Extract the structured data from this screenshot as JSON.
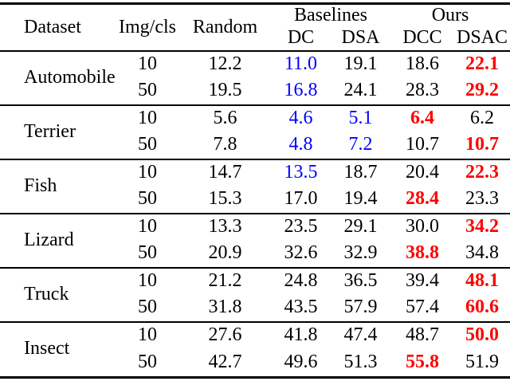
{
  "table": {
    "header": {
      "dataset": "Dataset",
      "img_per_cls": "Img/cls",
      "random": "Random",
      "baselines_group": "Baselines",
      "ours_group": "Ours",
      "dc": "DC",
      "dsa": "DSA",
      "dcc": "DCC",
      "dsac": "DSAC"
    },
    "colors": {
      "text": "#000000",
      "baseline_best_blue": "#0000ff",
      "best_result_red": "#ff0000",
      "rules": "#000000",
      "background": "#ffffff"
    },
    "column_keys": [
      "random",
      "dc",
      "dsa",
      "dcc",
      "dsac"
    ],
    "groups": [
      {
        "dataset": "Automobile",
        "rows": [
          {
            "img_per_cls": "10",
            "cells": [
              {
                "t": "12.2",
                "c": "black"
              },
              {
                "t": "11.0",
                "c": "blue"
              },
              {
                "t": "19.1",
                "c": "black"
              },
              {
                "t": "18.6",
                "c": "black"
              },
              {
                "t": "22.1",
                "c": "red"
              }
            ]
          },
          {
            "img_per_cls": "50",
            "cells": [
              {
                "t": "19.5",
                "c": "black"
              },
              {
                "t": "16.8",
                "c": "blue"
              },
              {
                "t": "24.1",
                "c": "black"
              },
              {
                "t": "28.3",
                "c": "black"
              },
              {
                "t": "29.2",
                "c": "red"
              }
            ]
          }
        ]
      },
      {
        "dataset": "Terrier",
        "rows": [
          {
            "img_per_cls": "10",
            "cells": [
              {
                "t": "5.6",
                "c": "black"
              },
              {
                "t": "4.6",
                "c": "blue"
              },
              {
                "t": "5.1",
                "c": "blue"
              },
              {
                "t": "6.4",
                "c": "red"
              },
              {
                "t": "6.2",
                "c": "black"
              }
            ]
          },
          {
            "img_per_cls": "50",
            "cells": [
              {
                "t": "7.8",
                "c": "black"
              },
              {
                "t": "4.8",
                "c": "blue"
              },
              {
                "t": "7.2",
                "c": "blue"
              },
              {
                "t": "10.7",
                "c": "black"
              },
              {
                "t": "10.7",
                "c": "red"
              }
            ]
          }
        ]
      },
      {
        "dataset": "Fish",
        "rows": [
          {
            "img_per_cls": "10",
            "cells": [
              {
                "t": "14.7",
                "c": "black"
              },
              {
                "t": "13.5",
                "c": "blue"
              },
              {
                "t": "18.7",
                "c": "black"
              },
              {
                "t": "20.4",
                "c": "black"
              },
              {
                "t": "22.3",
                "c": "red"
              }
            ]
          },
          {
            "img_per_cls": "50",
            "cells": [
              {
                "t": "15.3",
                "c": "black"
              },
              {
                "t": "17.0",
                "c": "black"
              },
              {
                "t": "19.4",
                "c": "black"
              },
              {
                "t": "28.4",
                "c": "red"
              },
              {
                "t": "23.3",
                "c": "black"
              }
            ]
          }
        ]
      },
      {
        "dataset": "Lizard",
        "rows": [
          {
            "img_per_cls": "10",
            "cells": [
              {
                "t": "13.3",
                "c": "black"
              },
              {
                "t": "23.5",
                "c": "black"
              },
              {
                "t": "29.1",
                "c": "black"
              },
              {
                "t": "30.0",
                "c": "black"
              },
              {
                "t": "34.2",
                "c": "red"
              }
            ]
          },
          {
            "img_per_cls": "50",
            "cells": [
              {
                "t": "20.9",
                "c": "black"
              },
              {
                "t": "32.6",
                "c": "black"
              },
              {
                "t": "32.9",
                "c": "black"
              },
              {
                "t": "38.8",
                "c": "red"
              },
              {
                "t": "34.8",
                "c": "black"
              }
            ]
          }
        ]
      },
      {
        "dataset": "Truck",
        "rows": [
          {
            "img_per_cls": "10",
            "cells": [
              {
                "t": "21.2",
                "c": "black"
              },
              {
                "t": "24.8",
                "c": "black"
              },
              {
                "t": "36.5",
                "c": "black"
              },
              {
                "t": "39.4",
                "c": "black"
              },
              {
                "t": "48.1",
                "c": "red"
              }
            ]
          },
          {
            "img_per_cls": "50",
            "cells": [
              {
                "t": "31.8",
                "c": "black"
              },
              {
                "t": "43.5",
                "c": "black"
              },
              {
                "t": "57.9",
                "c": "black"
              },
              {
                "t": "57.4",
                "c": "black"
              },
              {
                "t": "60.6",
                "c": "red"
              }
            ]
          }
        ]
      },
      {
        "dataset": "Insect",
        "rows": [
          {
            "img_per_cls": "10",
            "cells": [
              {
                "t": "27.6",
                "c": "black"
              },
              {
                "t": "41.8",
                "c": "black"
              },
              {
                "t": "47.4",
                "c": "black"
              },
              {
                "t": "48.7",
                "c": "black"
              },
              {
                "t": "50.0",
                "c": "red"
              }
            ]
          },
          {
            "img_per_cls": "50",
            "cells": [
              {
                "t": "42.7",
                "c": "black"
              },
              {
                "t": "49.6",
                "c": "black"
              },
              {
                "t": "51.3",
                "c": "black"
              },
              {
                "t": "55.8",
                "c": "red"
              },
              {
                "t": "51.9",
                "c": "black"
              }
            ]
          }
        ]
      }
    ]
  }
}
